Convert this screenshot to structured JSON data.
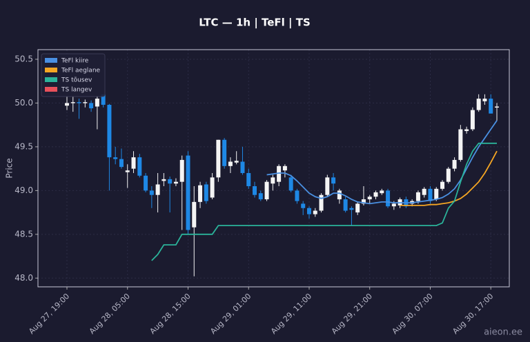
{
  "chart_data": {
    "type": "candlestick",
    "title": "LTC — 1h  |  TeFl  |  TS",
    "ylabel": "Price",
    "watermark": "aieon.ee",
    "x": [
      "Aug 27, 19:00",
      "Aug 27, 20:00",
      "Aug 27, 21:00",
      "Aug 27, 22:00",
      "Aug 27, 23:00",
      "Aug 28, 00:00",
      "Aug 28, 01:00",
      "Aug 28, 02:00",
      "Aug 28, 03:00",
      "Aug 28, 04:00",
      "Aug 28, 05:00",
      "Aug 28, 06:00",
      "Aug 28, 07:00",
      "Aug 28, 08:00",
      "Aug 28, 09:00",
      "Aug 28, 10:00",
      "Aug 28, 11:00",
      "Aug 28, 12:00",
      "Aug 28, 13:00",
      "Aug 28, 14:00",
      "Aug 28, 15:00",
      "Aug 28, 16:00",
      "Aug 28, 17:00",
      "Aug 28, 18:00",
      "Aug 28, 19:00",
      "Aug 28, 20:00",
      "Aug 28, 21:00",
      "Aug 28, 22:00",
      "Aug 28, 23:00",
      "Aug 29, 00:00",
      "Aug 29, 01:00",
      "Aug 29, 02:00",
      "Aug 29, 03:00",
      "Aug 29, 04:00",
      "Aug 29, 05:00",
      "Aug 29, 06:00",
      "Aug 29, 07:00",
      "Aug 29, 08:00",
      "Aug 29, 09:00",
      "Aug 29, 10:00",
      "Aug 29, 11:00",
      "Aug 29, 12:00",
      "Aug 29, 13:00",
      "Aug 29, 14:00",
      "Aug 29, 15:00",
      "Aug 29, 16:00",
      "Aug 29, 17:00",
      "Aug 29, 18:00",
      "Aug 29, 19:00",
      "Aug 29, 20:00",
      "Aug 29, 21:00",
      "Aug 29, 22:00",
      "Aug 29, 23:00",
      "Aug 30, 00:00",
      "Aug 30, 01:00",
      "Aug 30, 02:00",
      "Aug 30, 03:00",
      "Aug 30, 04:00",
      "Aug 30, 05:00",
      "Aug 30, 06:00",
      "Aug 30, 07:00",
      "Aug 30, 08:00",
      "Aug 30, 09:00",
      "Aug 30, 10:00",
      "Aug 30, 11:00",
      "Aug 30, 12:00",
      "Aug 30, 13:00",
      "Aug 30, 14:00",
      "Aug 30, 15:00",
      "Aug 30, 16:00",
      "Aug 30, 17:00",
      "Aug 30, 18:00"
    ],
    "open": [
      49.97,
      50.0,
      50.01,
      50.0,
      50.0,
      49.96,
      50.1,
      49.98,
      49.38,
      49.36,
      49.21,
      49.25,
      49.38,
      49.17,
      49.0,
      48.95,
      49.11,
      49.13,
      49.08,
      49.1,
      49.4,
      48.58,
      48.87,
      49.07,
      48.92,
      49.15,
      49.58,
      49.28,
      49.32,
      49.33,
      49.2,
      49.05,
      48.97,
      48.9,
      49.08,
      49.1,
      49.23,
      49.15,
      49.0,
      48.85,
      48.8,
      48.73,
      48.77,
      48.95,
      49.15,
      48.9,
      48.9,
      48.8,
      48.75,
      48.85,
      48.9,
      48.93,
      48.97,
      49.0,
      48.82,
      48.83,
      48.9,
      48.85,
      48.88,
      48.95,
      49.02,
      48.9,
      49.02,
      49.1,
      49.25,
      49.35,
      49.68,
      49.7,
      49.92,
      50.02,
      50.05,
      49.95
    ],
    "high": [
      50.07,
      50.07,
      50.05,
      50.04,
      50.03,
      50.08,
      50.1,
      49.99,
      49.5,
      49.48,
      49.3,
      49.45,
      49.42,
      49.2,
      49.05,
      49.2,
      49.2,
      49.16,
      49.14,
      49.4,
      49.45,
      49.05,
      49.1,
      49.1,
      49.2,
      49.58,
      49.6,
      49.38,
      49.45,
      49.5,
      49.25,
      49.1,
      49.0,
      49.12,
      49.18,
      49.3,
      49.3,
      49.18,
      49.02,
      48.88,
      48.82,
      48.8,
      48.97,
      49.18,
      49.2,
      49.02,
      48.93,
      48.82,
      48.87,
      49.05,
      48.95,
      49.0,
      49.02,
      49.02,
      48.88,
      48.92,
      48.93,
      48.9,
      49.0,
      49.04,
      49.05,
      49.04,
      49.12,
      49.27,
      49.38,
      49.75,
      49.73,
      49.95,
      50.1,
      50.1,
      50.1,
      50.0
    ],
    "low": [
      49.92,
      49.9,
      49.82,
      49.95,
      49.9,
      49.7,
      49.95,
      49.0,
      49.3,
      49.25,
      49.03,
      49.2,
      49.15,
      48.98,
      48.8,
      48.75,
      49.05,
      48.75,
      49.05,
      48.55,
      48.5,
      48.02,
      48.8,
      48.85,
      48.9,
      49.1,
      49.25,
      49.2,
      49.3,
      49.18,
      49.02,
      48.92,
      48.88,
      48.88,
      49.0,
      49.05,
      49.15,
      48.98,
      48.85,
      48.72,
      48.68,
      48.7,
      48.75,
      48.93,
      49.0,
      48.85,
      48.75,
      48.6,
      48.72,
      48.83,
      48.85,
      48.9,
      48.95,
      48.8,
      48.78,
      48.8,
      48.8,
      48.82,
      48.85,
      48.92,
      48.85,
      48.88,
      49.0,
      49.08,
      49.22,
      49.33,
      49.65,
      49.68,
      49.9,
      49.98,
      49.88,
      49.8
    ],
    "close": [
      50.0,
      50.01,
      50.0,
      50.01,
      49.94,
      50.05,
      49.98,
      49.38,
      49.36,
      49.27,
      49.23,
      49.38,
      49.17,
      49.0,
      48.95,
      49.07,
      49.13,
      49.08,
      49.1,
      49.35,
      48.55,
      48.87,
      49.06,
      48.88,
      49.15,
      49.58,
      49.28,
      49.33,
      49.34,
      49.2,
      49.05,
      48.95,
      48.9,
      49.1,
      49.15,
      49.28,
      49.28,
      49.0,
      48.88,
      48.8,
      48.73,
      48.77,
      48.95,
      49.15,
      49.08,
      49.0,
      48.77,
      48.78,
      48.85,
      48.9,
      48.93,
      48.98,
      49.0,
      48.82,
      48.85,
      48.9,
      48.82,
      48.88,
      48.98,
      49.02,
      48.88,
      49.02,
      49.1,
      49.25,
      49.35,
      49.7,
      49.7,
      49.92,
      50.05,
      50.05,
      49.88,
      49.96
    ],
    "up_color": "#f4f4f4",
    "down_color": "#1e88e5",
    "lines": [
      {
        "name": "TeFl kiire",
        "color": "#4a90e2",
        "values": [
          null,
          null,
          null,
          null,
          null,
          null,
          null,
          null,
          null,
          null,
          null,
          null,
          null,
          null,
          null,
          null,
          null,
          null,
          null,
          null,
          null,
          null,
          null,
          null,
          null,
          null,
          null,
          null,
          null,
          null,
          null,
          null,
          null,
          49.18,
          49.19,
          49.2,
          49.2,
          49.17,
          49.11,
          49.04,
          48.97,
          48.93,
          48.91,
          48.93,
          48.97,
          48.97,
          48.94,
          48.9,
          48.87,
          48.86,
          48.85,
          48.86,
          48.87,
          48.87,
          48.86,
          48.86,
          48.86,
          48.86,
          48.87,
          48.88,
          48.89,
          48.9,
          48.92,
          48.96,
          49.02,
          49.12,
          49.25,
          49.38,
          49.5,
          49.6,
          49.7,
          49.8
        ]
      },
      {
        "name": "TeFl aeglane",
        "color": "#f5a623",
        "values": [
          null,
          null,
          null,
          null,
          null,
          null,
          null,
          null,
          null,
          null,
          null,
          null,
          null,
          null,
          null,
          null,
          null,
          null,
          null,
          null,
          null,
          null,
          null,
          null,
          null,
          null,
          null,
          null,
          null,
          null,
          null,
          null,
          null,
          null,
          null,
          null,
          null,
          null,
          null,
          null,
          null,
          null,
          null,
          null,
          null,
          null,
          null,
          null,
          null,
          null,
          null,
          null,
          null,
          null,
          null,
          48.83,
          48.83,
          48.83,
          48.83,
          48.83,
          48.84,
          48.84,
          48.85,
          48.86,
          48.88,
          48.91,
          48.96,
          49.03,
          49.1,
          49.2,
          49.32,
          49.45
        ]
      },
      {
        "name": "TS tõusev",
        "color": "#2bb39a",
        "values": [
          null,
          null,
          null,
          null,
          null,
          null,
          null,
          null,
          null,
          null,
          null,
          null,
          null,
          null,
          48.2,
          48.27,
          48.38,
          48.38,
          48.38,
          48.5,
          48.5,
          48.5,
          48.5,
          48.5,
          48.5,
          48.6,
          48.6,
          48.6,
          48.6,
          48.6,
          48.6,
          48.6,
          48.6,
          48.6,
          48.6,
          48.6,
          48.6,
          48.6,
          48.6,
          48.6,
          48.6,
          48.6,
          48.6,
          48.6,
          48.6,
          48.6,
          48.6,
          48.6,
          48.6,
          48.6,
          48.6,
          48.6,
          48.6,
          48.6,
          48.6,
          48.6,
          48.6,
          48.6,
          48.6,
          48.6,
          48.6,
          48.6,
          48.63,
          48.8,
          48.88,
          49.1,
          49.3,
          49.45,
          49.54,
          49.54,
          49.54,
          49.54
        ]
      },
      {
        "name": "TS langev",
        "color": "#e8505b",
        "values": [
          null,
          null,
          null,
          null,
          null,
          null,
          null,
          null,
          null,
          null,
          null,
          null,
          null,
          null,
          null,
          null,
          null,
          null,
          null,
          null,
          null,
          null,
          null,
          null,
          null,
          null,
          null,
          null,
          null,
          null,
          null,
          null,
          null,
          null,
          null,
          null,
          null,
          null,
          null,
          null,
          null,
          null,
          null,
          null,
          null,
          null,
          null,
          null,
          null,
          null,
          null,
          null,
          null,
          null,
          null,
          null,
          null,
          null,
          null,
          null,
          null,
          null,
          null,
          null,
          null,
          null,
          null,
          null,
          null,
          null,
          null,
          null
        ]
      }
    ],
    "ylim": [
      47.9,
      50.61
    ],
    "yticks": [
      {
        "value": 48,
        "label": "48.0"
      },
      48.5,
      {
        "value": 49,
        "label": "49.0"
      },
      49.5,
      {
        "value": 50,
        "label": "50.0"
      },
      50.5
    ],
    "xticks": [
      "Aug 27, 19:00",
      "Aug 28, 05:00",
      "Aug 28, 15:00",
      "Aug 29, 01:00",
      "Aug 29, 11:00",
      "Aug 29, 21:00",
      "Aug 30, 07:00",
      "Aug 30, 17:00"
    ],
    "grid": true,
    "legend": "upper left"
  }
}
